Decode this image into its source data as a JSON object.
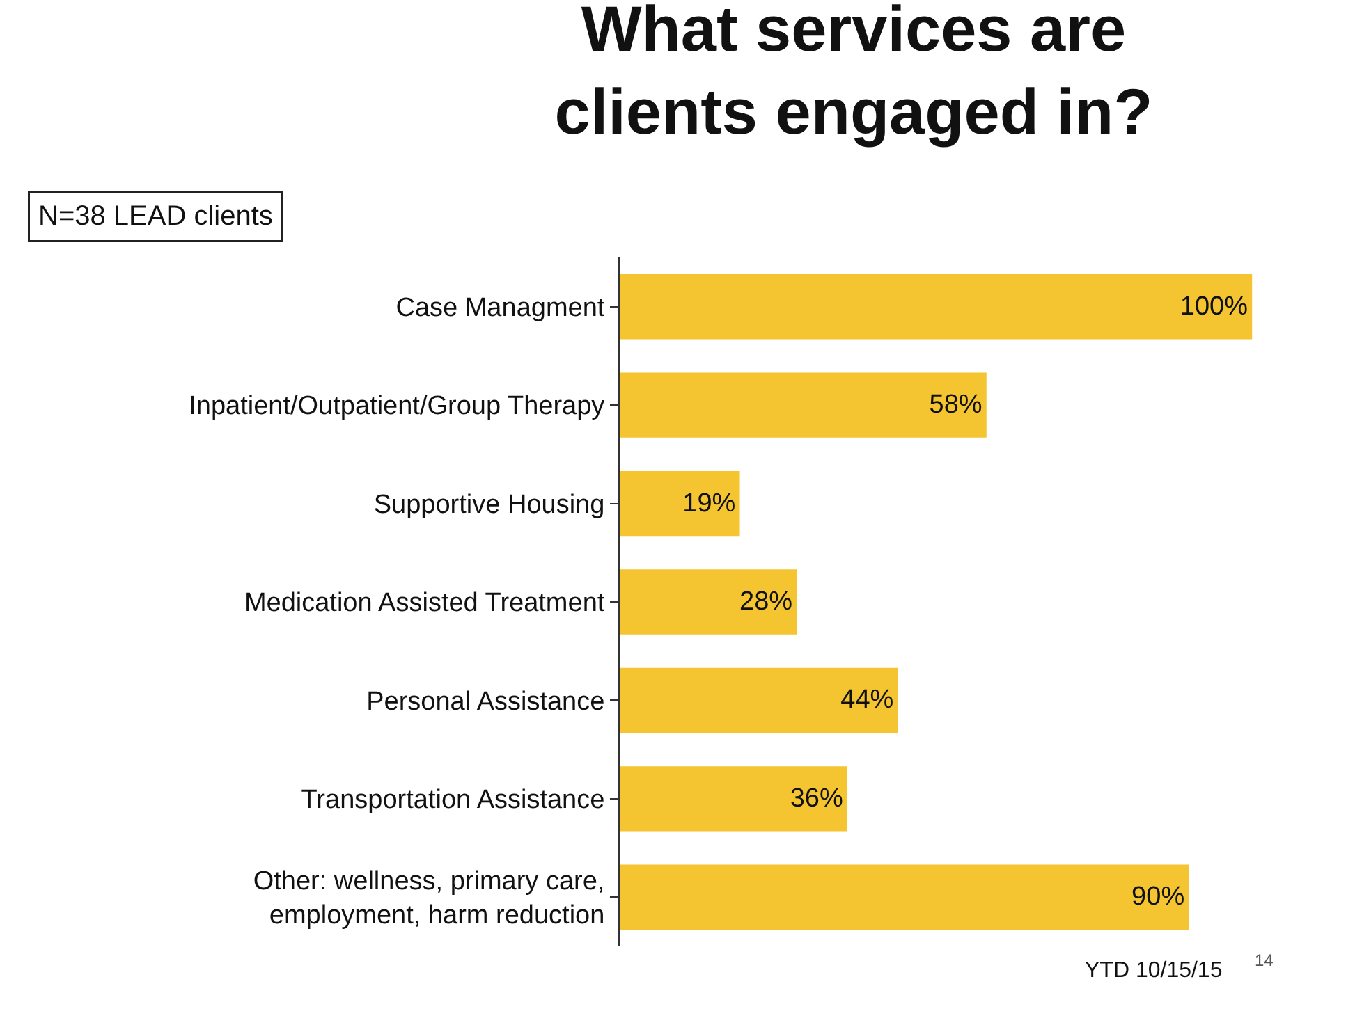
{
  "chart_data": {
    "type": "bar",
    "orientation": "horizontal",
    "title": "What services are\nclients engaged in?",
    "categories": [
      "Case Managment",
      "Inpatient/Outpatient/Group Therapy",
      "Supportive Housing",
      "Medication Assisted Treatment",
      "Personal Assistance",
      "Transportation Assistance",
      "Other: wellness, primary care,\nemployment, harm reduction"
    ],
    "values": [
      100,
      58,
      19,
      28,
      44,
      36,
      90
    ],
    "value_labels": [
      "100%",
      "58%",
      "19%",
      "28%",
      "44%",
      "36%",
      "90%"
    ],
    "color": "#f4c531",
    "annotations": [
      "N=38 LEAD clients",
      "YTD 10/15/15",
      "14"
    ],
    "grid": false,
    "legend": false
  }
}
